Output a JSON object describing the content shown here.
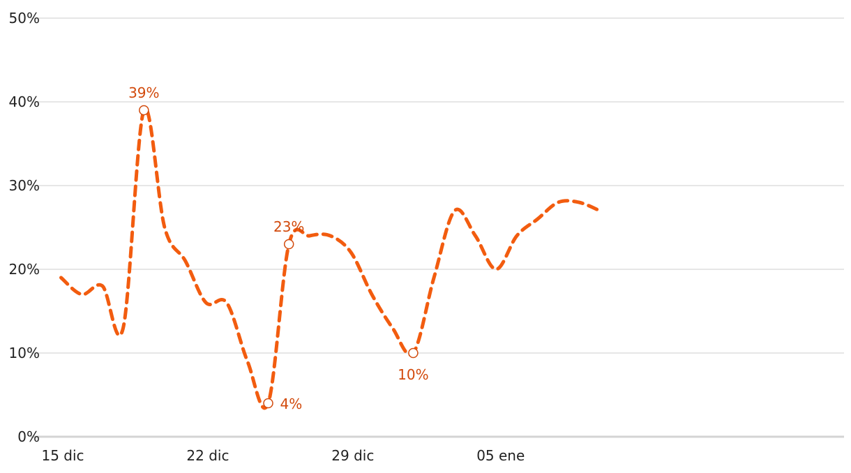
{
  "chart_data": {
    "type": "line",
    "title": "",
    "xlabel": "",
    "ylabel": "",
    "ylim": [
      0,
      50
    ],
    "y_ticks": [
      "0%",
      "10%",
      "20%",
      "30%",
      "40%",
      "50%"
    ],
    "y_tick_values": [
      0,
      10,
      20,
      30,
      40,
      50
    ],
    "x_ticks": [
      {
        "label": "15 dic",
        "index": 0
      },
      {
        "label": "22 dic",
        "index": 7
      },
      {
        "label": "29 dic",
        "index": 14
      },
      {
        "label": "05 ene",
        "index": 21
      }
    ],
    "grid": true,
    "legend": "none",
    "series": [
      {
        "color": "#f25c0f",
        "style": "dashed",
        "x": [
          "15 dic",
          "16 dic",
          "17 dic",
          "18 dic",
          "19 dic",
          "20 dic",
          "21 dic",
          "22 dic",
          "23 dic",
          "24 dic",
          "25 dic",
          "26 dic",
          "27 dic",
          "28 dic",
          "29 dic",
          "30 dic",
          "31 dic",
          "01 ene",
          "02 ene",
          "03 ene",
          "04 ene",
          "05 ene",
          "06 ene",
          "07 ene",
          "08 ene",
          "09 ene",
          "10 ene",
          "11 ene"
        ],
        "values": [
          19,
          17,
          18,
          13,
          39,
          25,
          21,
          16,
          16,
          9,
          4,
          23,
          24,
          24,
          22,
          17,
          13,
          10,
          19,
          27,
          24,
          20,
          24,
          26,
          28,
          28,
          27,
          null
        ]
      }
    ],
    "annotations": [
      {
        "index": 4,
        "value": 39,
        "label": "39%",
        "position": "above"
      },
      {
        "index": 10,
        "value": 4,
        "label": "4%",
        "position": "right"
      },
      {
        "index": 11,
        "value": 23,
        "label": "23%",
        "position": "above"
      },
      {
        "index": 17,
        "value": 10,
        "label": "10%",
        "position": "below"
      }
    ],
    "annotation_color": "#d24a0c"
  }
}
